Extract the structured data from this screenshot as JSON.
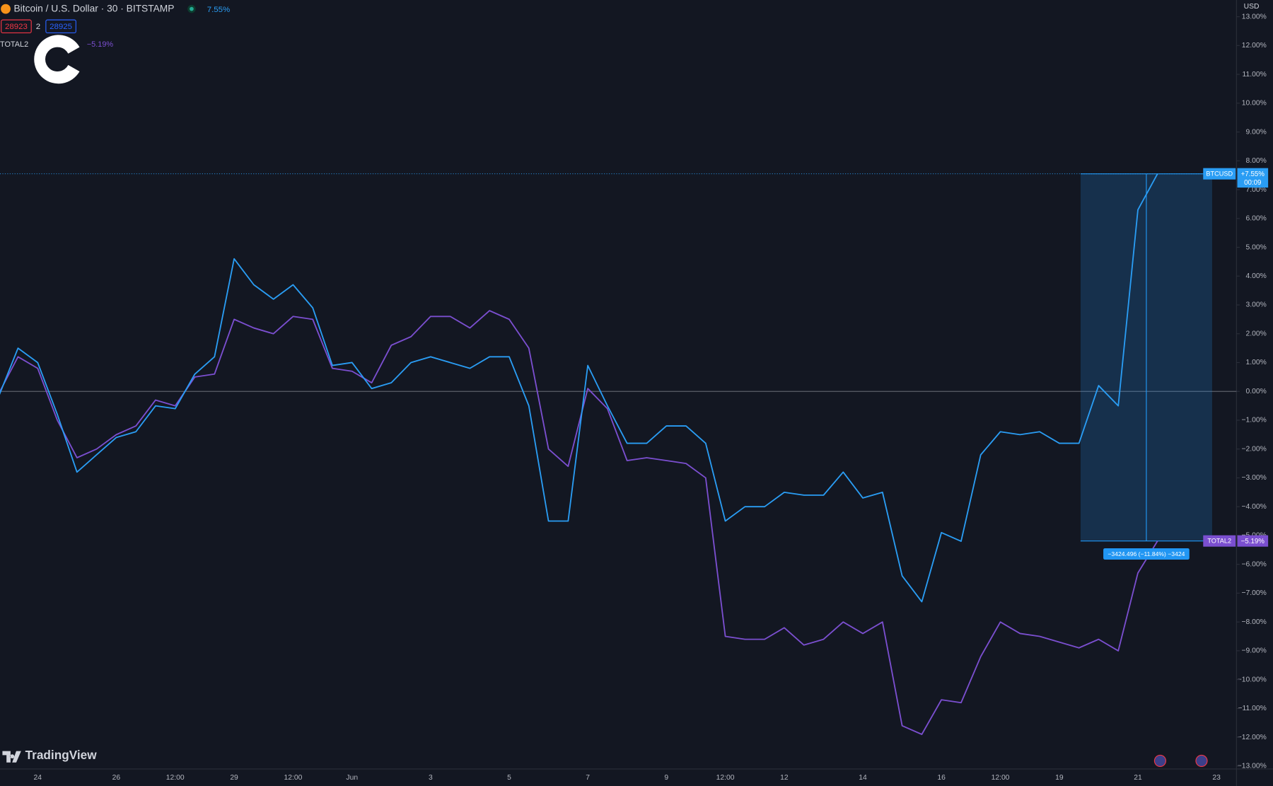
{
  "chart_data": {
    "type": "line",
    "title": "Bitcoin / U.S. Dollar · 30 · BITSTAMP",
    "title_change": "7.55%",
    "bid": "28923",
    "spread": "2",
    "ask": "28925",
    "currency": "USD",
    "brand": "TradingView",
    "categories": [
      null,
      null,
      "24",
      null,
      null,
      null,
      "26",
      null,
      null,
      "12:00",
      null,
      null,
      "29",
      null,
      null,
      "12:00",
      null,
      null,
      "Jun",
      null,
      null,
      null,
      "3",
      null,
      null,
      null,
      "5",
      null,
      null,
      null,
      "7",
      null,
      null,
      null,
      "9",
      null,
      null,
      "12:00",
      null,
      null,
      "12",
      null,
      null,
      null,
      "14",
      null,
      null,
      null,
      "16",
      null,
      null,
      "12:00",
      null,
      null,
      "19",
      null,
      null,
      null,
      "21",
      null,
      null,
      null,
      "23"
    ],
    "series": [
      {
        "name": "BTCUSD",
        "color": "#2a9df4",
        "last_label": "+7.55%",
        "countdown": "00:09",
        "values": [
          -0.2,
          1.5,
          1.0,
          -0.8,
          -2.8,
          -2.2,
          -1.6,
          -1.4,
          -0.5,
          -0.6,
          0.6,
          1.2,
          4.6,
          3.7,
          3.2,
          3.7,
          2.9,
          0.9,
          1.0,
          0.1,
          0.3,
          1.0,
          1.2,
          1.0,
          0.8,
          1.2,
          1.2,
          -0.5,
          -4.5,
          -4.5,
          0.9,
          -0.5,
          -1.8,
          -1.8,
          -1.2,
          -1.2,
          -1.8,
          -4.5,
          -4.0,
          -4.0,
          -3.5,
          -3.6,
          -3.6,
          -2.8,
          -3.7,
          -3.5,
          -6.4,
          -7.3,
          -4.9,
          -5.2,
          -2.2,
          -1.4,
          -1.5,
          -1.4,
          -1.8,
          -1.8,
          0.2,
          -0.5,
          6.3,
          7.55,
          null,
          null,
          null
        ]
      },
      {
        "name": "TOTAL2",
        "color": "#7b4fd0",
        "last_label": "−5.19%",
        "values": [
          -0.1,
          1.2,
          0.8,
          -1.0,
          -2.3,
          -2.0,
          -1.5,
          -1.2,
          -0.3,
          -0.5,
          0.5,
          0.6,
          2.5,
          2.2,
          2.0,
          2.6,
          2.5,
          0.8,
          0.7,
          0.3,
          1.6,
          1.9,
          2.6,
          2.6,
          2.2,
          2.8,
          2.5,
          1.5,
          -2.0,
          -2.6,
          0.1,
          -0.6,
          -2.4,
          -2.3,
          -2.4,
          -2.5,
          -3.0,
          -8.5,
          -8.6,
          -8.6,
          -8.2,
          -8.8,
          -8.6,
          -8.0,
          -8.4,
          -8.0,
          -11.6,
          -11.9,
          -10.7,
          -10.8,
          -9.2,
          -8.0,
          -8.4,
          -8.5,
          -8.7,
          -8.9,
          -8.6,
          -9.0,
          -6.3,
          -5.19,
          null,
          null,
          null
        ]
      }
    ],
    "measure_label": "−3424.496 (−11.84%) −3424",
    "ylim": [
      -13.1,
      13.58
    ],
    "yticks": [
      {
        "value": -13,
        "label": "−13.00%"
      },
      {
        "value": -12,
        "label": "−12.00%"
      },
      {
        "value": -11,
        "label": "−11.00%"
      },
      {
        "value": -10,
        "label": "−10.00%"
      },
      {
        "value": -9,
        "label": "−9.00%"
      },
      {
        "value": -8,
        "label": "−8.00%"
      },
      {
        "value": -7,
        "label": "−7.00%"
      },
      {
        "value": -6,
        "label": "−6.00%"
      },
      {
        "value": -5,
        "label": "−5.00%"
      },
      {
        "value": -4,
        "label": "−4.00%"
      },
      {
        "value": -3,
        "label": "−3.00%"
      },
      {
        "value": -2,
        "label": "−2.00%"
      },
      {
        "value": -1,
        "label": "−1.00%"
      },
      {
        "value": 0,
        "label": "0.00%"
      },
      {
        "value": 1,
        "label": "1.00%"
      },
      {
        "value": 2,
        "label": "2.00%"
      },
      {
        "value": 3,
        "label": "3.00%"
      },
      {
        "value": 4,
        "label": "4.00%"
      },
      {
        "value": 5,
        "label": "5.00%"
      },
      {
        "value": 6,
        "label": "6.00%"
      },
      {
        "value": 7,
        "label": "7.00%"
      },
      {
        "value": 8,
        "label": "8.00%"
      },
      {
        "value": 9,
        "label": "9.00%"
      },
      {
        "value": 10,
        "label": "10.00%"
      },
      {
        "value": 11,
        "label": "11.00%"
      },
      {
        "value": 12,
        "label": "12.00%"
      },
      {
        "value": 13,
        "label": "13.00%"
      }
    ],
    "grid": false
  }
}
